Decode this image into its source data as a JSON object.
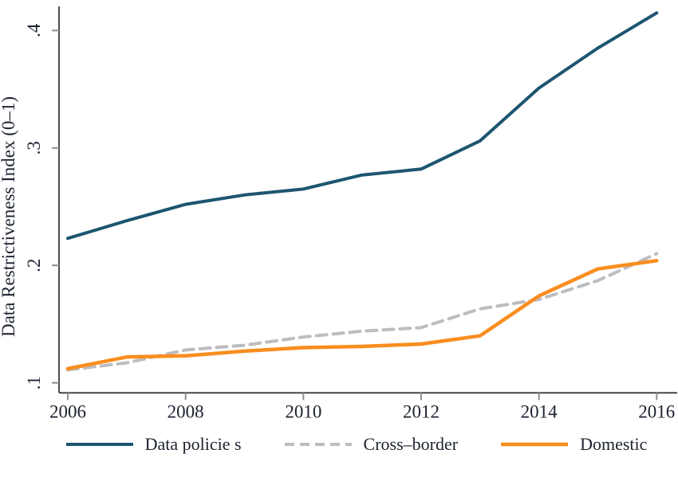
{
  "chart_data": {
    "type": "line",
    "title": "",
    "xlabel": "",
    "ylabel": "Data Restrictiveness Index (0–1)",
    "x": [
      2006,
      2007,
      2008,
      2009,
      2010,
      2011,
      2012,
      2013,
      2014,
      2015,
      2016
    ],
    "xlim": [
      2006,
      2016
    ],
    "ylim": [
      0.1,
      0.4
    ],
    "x_ticks": [
      2006,
      2008,
      2010,
      2012,
      2014,
      2016
    ],
    "x_tick_labels": [
      "2006",
      "2008",
      "2010",
      "2012",
      "2014",
      "2016"
    ],
    "y_ticks": [
      0.1,
      0.2,
      0.3,
      0.4
    ],
    "y_tick_labels": [
      ".1",
      ".2",
      ".3",
      ".4"
    ],
    "grid": false,
    "legend_position": "bottom",
    "series": [
      {
        "name": "Data policie s",
        "slug": "data-policies",
        "color": "#1d5570",
        "style": "solid",
        "width": 4,
        "values": [
          0.223,
          0.238,
          0.252,
          0.26,
          0.265,
          0.277,
          0.282,
          0.306,
          0.351,
          0.385,
          0.415
        ]
      },
      {
        "name": "Cross–border",
        "slug": "cross-border",
        "color": "#bdbdc1",
        "style": "dashed",
        "width": 4,
        "values": [
          0.111,
          0.117,
          0.128,
          0.132,
          0.139,
          0.144,
          0.147,
          0.163,
          0.171,
          0.187,
          0.21
        ]
      },
      {
        "name": "Domestic",
        "slug": "domestic",
        "color": "#f98d1e",
        "style": "solid",
        "width": 4.5,
        "values": [
          0.112,
          0.122,
          0.123,
          0.127,
          0.13,
          0.131,
          0.133,
          0.14,
          0.174,
          0.197,
          0.204
        ]
      }
    ]
  },
  "colors": {
    "background": "#ffffff",
    "axis": "#38383c",
    "tick": "#909094",
    "text": "#1c2230",
    "navy": "#1d5570",
    "gray": "#bdbdc1",
    "orange": "#f98d1e"
  }
}
